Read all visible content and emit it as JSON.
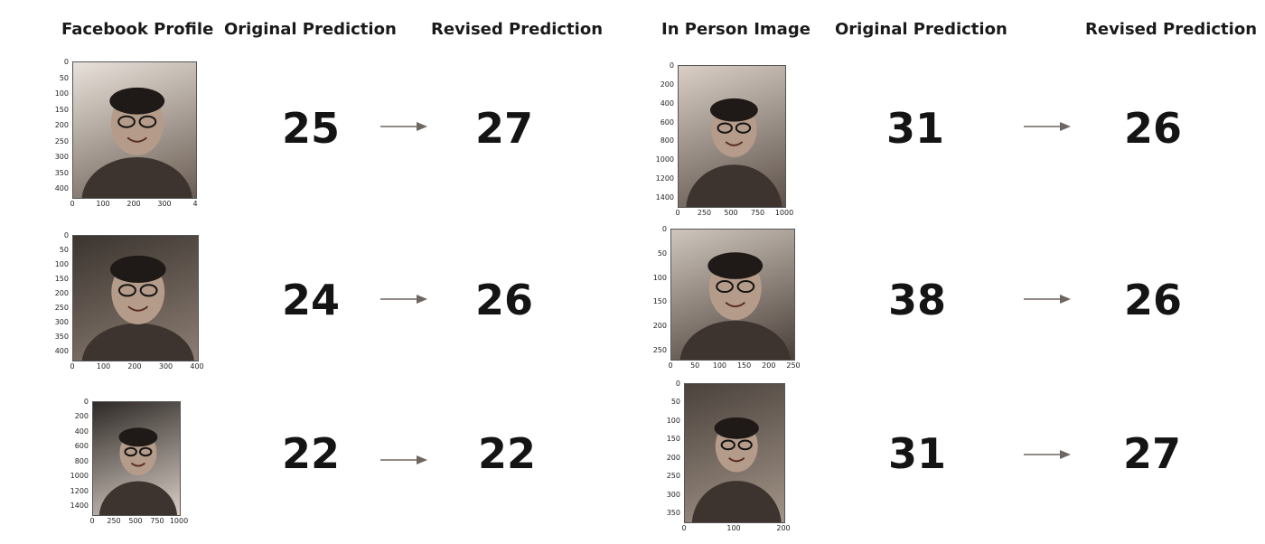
{
  "headers": {
    "left_image": "Facebook Profile",
    "left_original": "Original Prediction",
    "left_revised": "Revised Prediction",
    "right_image": "In Person Image",
    "right_original": "Original Prediction",
    "right_revised": "Revised Prediction"
  },
  "rows": [
    {
      "facebook": {
        "original": "25",
        "revised": "27",
        "yticks": [
          "0",
          "50",
          "100",
          "150",
          "200",
          "250",
          "300",
          "350",
          "400"
        ],
        "xticks": [
          "0",
          "100",
          "200",
          "300",
          "4"
        ]
      },
      "in_person": {
        "original": "31",
        "revised": "26",
        "yticks": [
          "0",
          "200",
          "400",
          "600",
          "800",
          "1000",
          "1200",
          "1400"
        ],
        "xticks": [
          "0",
          "250",
          "500",
          "750",
          "1000"
        ]
      }
    },
    {
      "facebook": {
        "original": "24",
        "revised": "26",
        "yticks": [
          "0",
          "50",
          "100",
          "150",
          "200",
          "250",
          "300",
          "350",
          "400"
        ],
        "xticks": [
          "0",
          "100",
          "200",
          "300",
          "400"
        ]
      },
      "in_person": {
        "original": "38",
        "revised": "26",
        "yticks": [
          "0",
          "50",
          "100",
          "150",
          "200",
          "250"
        ],
        "xticks": [
          "0",
          "50",
          "100",
          "150",
          "200",
          "250"
        ]
      }
    },
    {
      "facebook": {
        "original": "22",
        "revised": "22",
        "yticks": [
          "0",
          "200",
          "400",
          "600",
          "800",
          "1000",
          "1200",
          "1400"
        ],
        "xticks": [
          "0",
          "250",
          "500",
          "750",
          "1000"
        ]
      },
      "in_person": {
        "original": "31",
        "revised": "27",
        "yticks": [
          "0",
          "50",
          "100",
          "150",
          "200",
          "250",
          "300",
          "350"
        ],
        "xticks": [
          "0",
          "100",
          "200"
        ]
      }
    }
  ],
  "arrow_color": "#6e6660"
}
